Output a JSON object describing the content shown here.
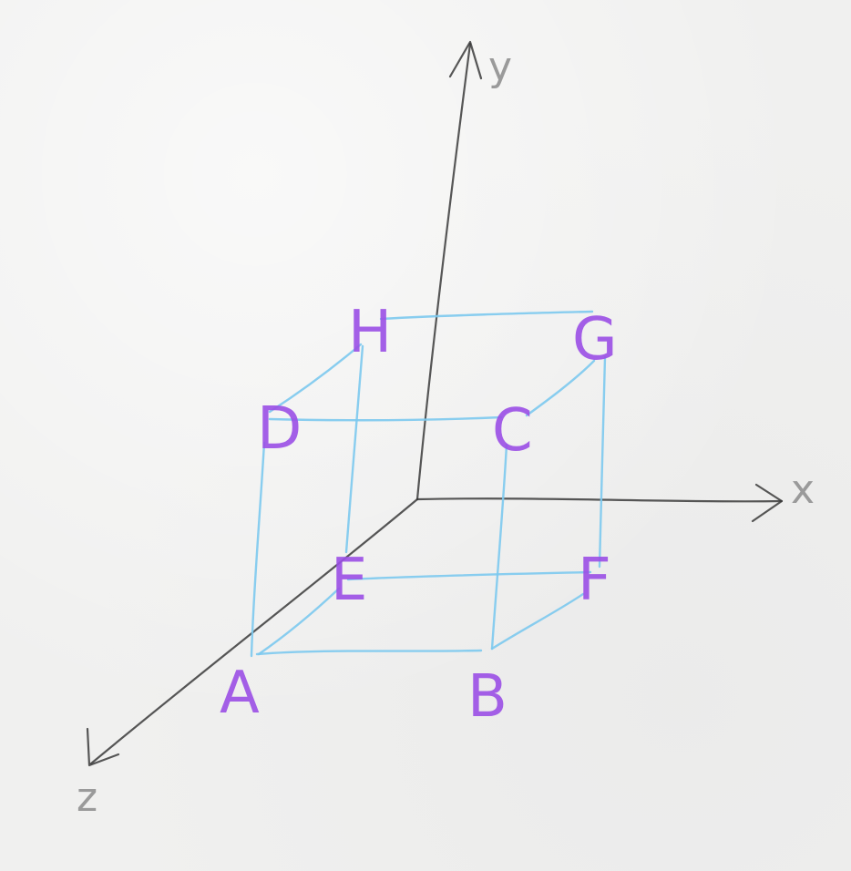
{
  "diagram": {
    "axes": {
      "x_label": "x",
      "y_label": "y",
      "z_label": "z"
    },
    "vertices": {
      "A": "A",
      "B": "B",
      "C": "C",
      "D": "D",
      "E": "E",
      "F": "F",
      "G": "G",
      "H": "H"
    },
    "edges": [
      [
        "A",
        "B"
      ],
      [
        "B",
        "C"
      ],
      [
        "C",
        "D"
      ],
      [
        "D",
        "A"
      ],
      [
        "E",
        "F"
      ],
      [
        "F",
        "G"
      ],
      [
        "G",
        "H"
      ],
      [
        "H",
        "E"
      ],
      [
        "A",
        "E"
      ],
      [
        "B",
        "F"
      ],
      [
        "C",
        "G"
      ],
      [
        "D",
        "H"
      ]
    ],
    "colors": {
      "axis": "#3a3a3a",
      "edge": "#7cc9ee",
      "vertex_label": "#9b4fe6",
      "axis_label": "#9a9a9a",
      "paper": "#f0f0ef"
    }
  }
}
